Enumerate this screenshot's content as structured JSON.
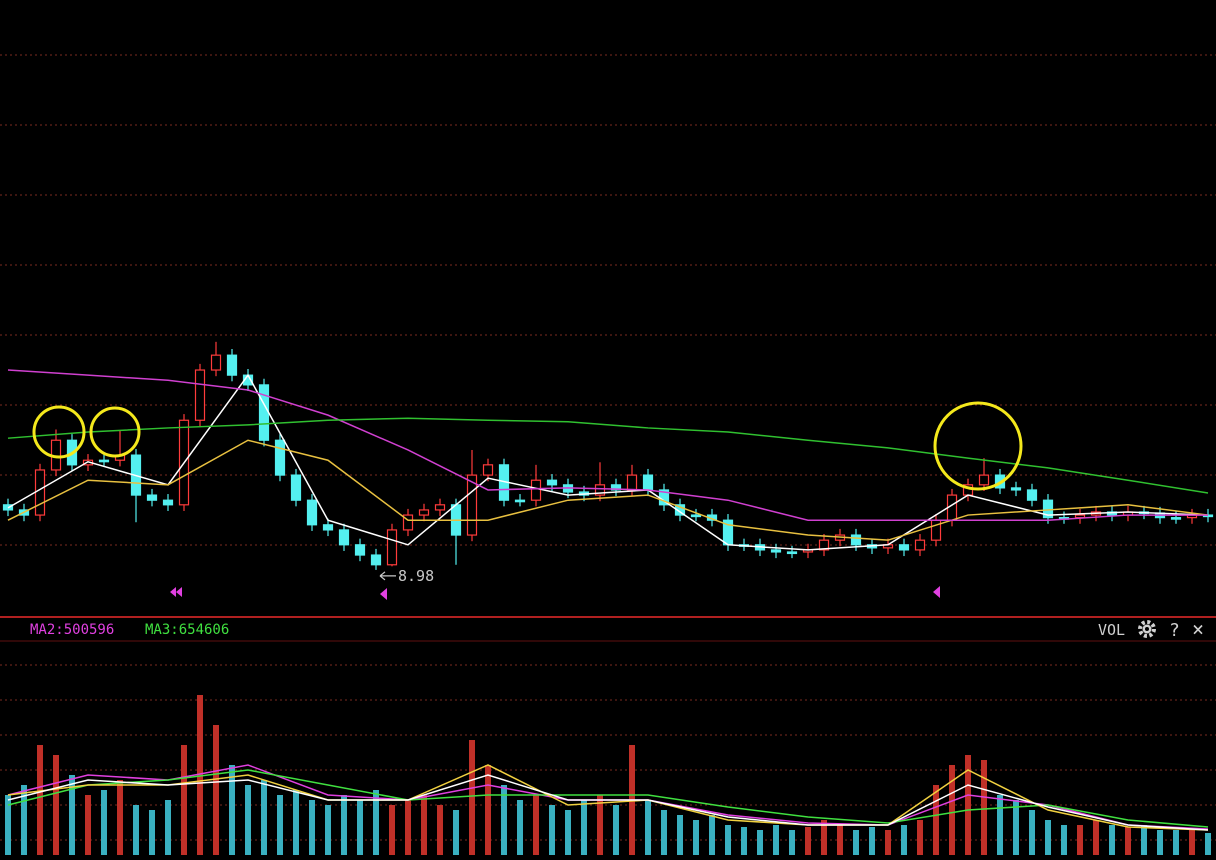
{
  "chart_data": {
    "type": "candlestick",
    "up_color": "#ff3b3b",
    "down_color": "#54f0f0",
    "ylim": [
      8.1,
      20.1
    ],
    "candles": {
      "open": [
        10.25,
        10.15,
        10.05,
        10.93,
        11.51,
        11.03,
        11.12,
        11.12,
        11.22,
        10.44,
        10.34,
        10.25,
        11.9,
        12.88,
        13.17,
        12.78,
        12.59,
        11.51,
        10.83,
        10.34,
        9.86,
        9.76,
        9.47,
        9.27,
        9.08,
        9.76,
        10.05,
        10.15,
        10.25,
        9.66,
        10.83,
        11.03,
        10.34,
        10.34,
        10.73,
        10.64,
        10.5,
        10.44,
        10.64,
        10.54,
        10.83,
        10.54,
        10.25,
        10.05,
        10.05,
        9.95,
        9.47,
        9.47,
        9.37,
        9.33,
        9.33,
        9.37,
        9.56,
        9.66,
        9.47,
        9.41,
        9.47,
        9.37,
        9.56,
        9.95,
        10.44,
        10.64,
        10.83,
        10.58,
        10.54,
        10.34,
        10.0,
        10.0,
        10.05,
        10.11,
        10.05,
        10.11,
        10.09,
        10.0,
        10.0,
        10.05
      ],
      "high": [
        10.37,
        10.27,
        11.05,
        11.72,
        11.63,
        11.24,
        11.24,
        11.7,
        11.34,
        10.56,
        10.46,
        12.02,
        13.0,
        13.43,
        13.29,
        12.9,
        12.71,
        11.63,
        10.95,
        10.46,
        9.98,
        9.88,
        9.59,
        9.39,
        9.88,
        10.17,
        10.27,
        10.37,
        10.37,
        11.32,
        11.15,
        11.15,
        10.46,
        11.03,
        10.85,
        10.76,
        10.62,
        11.08,
        10.76,
        11.03,
        10.95,
        10.66,
        10.37,
        10.17,
        10.17,
        10.07,
        9.59,
        9.59,
        9.49,
        9.45,
        9.49,
        9.68,
        9.78,
        9.78,
        9.59,
        9.59,
        9.59,
        9.68,
        10.07,
        10.56,
        10.76,
        11.16,
        10.95,
        10.7,
        10.66,
        10.46,
        10.12,
        10.17,
        10.23,
        10.23,
        10.23,
        10.23,
        10.21,
        10.12,
        10.17,
        10.17
      ],
      "low": [
        10.03,
        9.93,
        9.93,
        10.81,
        10.91,
        10.91,
        11.0,
        11.0,
        9.91,
        10.22,
        10.13,
        10.13,
        11.78,
        12.76,
        12.66,
        12.47,
        11.39,
        10.71,
        10.22,
        9.74,
        9.64,
        9.35,
        9.15,
        8.98,
        9.05,
        9.64,
        9.93,
        10.03,
        9.08,
        9.54,
        10.71,
        10.22,
        10.22,
        10.22,
        10.52,
        10.38,
        10.32,
        10.32,
        10.42,
        10.42,
        10.42,
        10.13,
        9.93,
        9.93,
        9.83,
        9.35,
        9.35,
        9.25,
        9.21,
        9.21,
        9.21,
        9.25,
        9.44,
        9.35,
        9.29,
        9.29,
        9.25,
        9.25,
        9.44,
        9.83,
        10.32,
        10.52,
        10.46,
        10.42,
        10.22,
        9.88,
        9.88,
        9.88,
        9.93,
        9.93,
        9.93,
        9.97,
        9.88,
        9.88,
        9.88,
        9.91
      ],
      "close": [
        10.15,
        10.05,
        10.93,
        11.51,
        11.03,
        11.12,
        11.12,
        11.22,
        10.44,
        10.34,
        10.25,
        11.9,
        12.88,
        13.17,
        12.78,
        12.59,
        11.51,
        10.83,
        10.34,
        9.86,
        9.76,
        9.47,
        9.27,
        9.08,
        9.76,
        10.05,
        10.15,
        10.25,
        9.66,
        10.83,
        11.03,
        10.34,
        10.34,
        10.73,
        10.64,
        10.5,
        10.44,
        10.64,
        10.54,
        10.83,
        10.54,
        10.25,
        10.05,
        10.05,
        9.95,
        9.47,
        9.47,
        9.37,
        9.33,
        9.33,
        9.37,
        9.56,
        9.66,
        9.47,
        9.41,
        9.47,
        9.37,
        9.56,
        9.95,
        10.44,
        10.64,
        10.83,
        10.58,
        10.54,
        10.34,
        10.0,
        10.0,
        10.05,
        10.11,
        10.05,
        10.11,
        10.09,
        10.0,
        10.0,
        10.05,
        10.03
      ]
    },
    "series": [
      {
        "color": "#ffffff",
        "values": [
          10.19,
          11.09,
          10.64,
          12.78,
          9.95,
          9.47,
          10.77,
          10.44,
          10.54,
          9.47,
          9.37,
          9.47,
          10.44,
          10.05,
          10.11,
          10.05
        ]
      },
      {
        "color": "#e8c040",
        "values": [
          9.95,
          10.73,
          10.64,
          11.51,
          11.12,
          9.95,
          9.95,
          10.34,
          10.44,
          9.86,
          9.66,
          9.56,
          10.05,
          10.15,
          10.25,
          10.05
        ]
      },
      {
        "color": "#d040d0",
        "values": [
          12.88,
          12.78,
          12.68,
          12.49,
          12.0,
          11.32,
          10.54,
          10.58,
          10.54,
          10.34,
          9.95,
          9.95,
          9.95,
          9.95,
          10.05,
          10.05
        ]
      },
      {
        "color": "#30c030",
        "values": [
          11.55,
          11.67,
          11.75,
          11.81,
          11.9,
          11.94,
          11.9,
          11.87,
          11.75,
          11.67,
          11.51,
          11.36,
          11.16,
          10.97,
          10.73,
          10.48
        ]
      }
    ],
    "volume": {
      "type": "bar",
      "label": "VOL",
      "ylim": [
        0,
        2300000
      ],
      "values": [
        600000,
        700000,
        1100000,
        1000000,
        800000,
        600000,
        650000,
        750000,
        500000,
        450000,
        550000,
        1100000,
        1600000,
        1300000,
        900000,
        700000,
        750000,
        600000,
        650000,
        550000,
        500000,
        600000,
        550000,
        650000,
        500000,
        550000,
        600000,
        500000,
        450000,
        1150000,
        900000,
        700000,
        550000,
        600000,
        500000,
        450000,
        550000,
        600000,
        500000,
        1100000,
        550000,
        450000,
        400000,
        350000,
        400000,
        300000,
        280000,
        250000,
        300000,
        250000,
        280000,
        350000,
        300000,
        250000,
        280000,
        250000,
        300000,
        350000,
        700000,
        900000,
        1000000,
        950000,
        600000,
        550000,
        450000,
        350000,
        300000,
        300000,
        350000,
        300000,
        280000,
        300000,
        250000,
        250000,
        250000,
        220000
      ],
      "series": [
        {
          "name": "MA2:500596",
          "color": "#e040e0",
          "values": [
            600000,
            800000,
            750000,
            900000,
            600000,
            550000,
            700000,
            550000,
            550000,
            400000,
            320000,
            300000,
            600000,
            500000,
            300000,
            260000
          ]
        },
        {
          "name": "MA3:654606",
          "color": "#40e040",
          "values": [
            500000,
            700000,
            750000,
            850000,
            700000,
            550000,
            600000,
            600000,
            600000,
            480000,
            380000,
            320000,
            450000,
            500000,
            350000,
            280000
          ]
        },
        {
          "color": "#f0d040",
          "values": [
            600000,
            700000,
            700000,
            800000,
            550000,
            550000,
            900000,
            500000,
            550000,
            350000,
            300000,
            300000,
            850000,
            450000,
            280000,
            250000
          ]
        },
        {
          "color": "#ffffff",
          "values": [
            550000,
            750000,
            700000,
            750000,
            550000,
            550000,
            800000,
            550000,
            550000,
            380000,
            300000,
            300000,
            700000,
            480000,
            300000,
            250000
          ]
        }
      ]
    },
    "toolbar": {
      "help": "?",
      "close": "×"
    }
  }
}
